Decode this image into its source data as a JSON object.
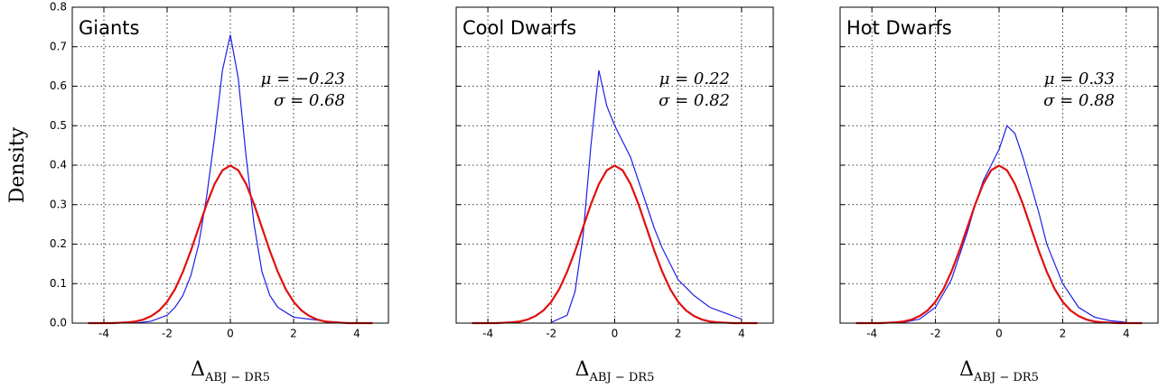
{
  "chart_data": [
    {
      "type": "line",
      "title": "Giants",
      "ylabel": "Density",
      "xlabel": {
        "main": "Δ",
        "sub": "ABJ − DR5"
      },
      "annotations": [
        "μ = −0.23",
        "σ = 0.68"
      ],
      "xlim": [
        -5,
        5
      ],
      "ylim": [
        0,
        0.8
      ],
      "xticks": [
        -4,
        -2,
        0,
        2,
        4
      ],
      "yticks": [
        {
          "value": 0,
          "label": "0.0"
        },
        0.1,
        0.2,
        0.3,
        0.4,
        0.5,
        0.6,
        0.7,
        0.8
      ],
      "ytick_labels": true,
      "grid": true,
      "series": [
        {
          "color": "#1f1fe8",
          "x": [
            -3.0,
            -2.5,
            -2.0,
            -1.75,
            -1.5,
            -1.25,
            -1.0,
            -0.75,
            -0.5,
            -0.25,
            0,
            0.25,
            0.5,
            0.75,
            1.0,
            1.25,
            1.5,
            2,
            2.5,
            3,
            3.5
          ],
          "values": [
            0.0,
            0.005,
            0.02,
            0.04,
            0.07,
            0.12,
            0.2,
            0.32,
            0.47,
            0.64,
            0.73,
            0.62,
            0.42,
            0.25,
            0.13,
            0.07,
            0.04,
            0.015,
            0.01,
            0.005,
            0.002
          ]
        },
        {
          "color": "#e01010",
          "x": [
            -4.5,
            -4.25,
            -4,
            -3.75,
            -3.5,
            -3.25,
            -3,
            -2.75,
            -2.5,
            -2.25,
            -2,
            -1.75,
            -1.5,
            -1.25,
            -1,
            -0.75,
            -0.5,
            -0.25,
            0,
            0.25,
            0.5,
            0.75,
            1,
            1.25,
            1.5,
            1.75,
            2,
            2.25,
            2.5,
            2.75,
            3,
            3.25,
            3.5,
            3.75,
            4,
            4.25,
            4.5
          ],
          "values": [
            0,
            0,
            0,
            0,
            0.001,
            0.002,
            0.004,
            0.009,
            0.018,
            0.032,
            0.054,
            0.086,
            0.13,
            0.183,
            0.242,
            0.301,
            0.352,
            0.387,
            0.399,
            0.387,
            0.352,
            0.301,
            0.242,
            0.183,
            0.13,
            0.086,
            0.054,
            0.032,
            0.018,
            0.009,
            0.004,
            0.002,
            0.001,
            0,
            0,
            0,
            0
          ]
        }
      ]
    },
    {
      "type": "line",
      "title": "Cool Dwarfs",
      "xlabel": {
        "main": "Δ",
        "sub": "ABJ − DR5"
      },
      "annotations": [
        "μ = 0.22",
        "σ = 0.82"
      ],
      "xlim": [
        -5,
        5
      ],
      "ylim": [
        0,
        0.8
      ],
      "xticks": [
        -4,
        -2,
        0,
        2,
        4
      ],
      "yticks": [
        0,
        0.1,
        0.2,
        0.3,
        0.4,
        0.5,
        0.6,
        0.7,
        0.8
      ],
      "ytick_labels": false,
      "grid": true,
      "series": [
        {
          "color": "#1f1fe8",
          "x": [
            -2,
            -1.5,
            -1.25,
            -1,
            -0.75,
            -0.5,
            -0.25,
            0,
            0.25,
            0.5,
            0.75,
            1,
            1.25,
            1.5,
            1.75,
            2,
            2.5,
            3,
            3.5,
            4
          ],
          "values": [
            0.002,
            0.02,
            0.08,
            0.22,
            0.45,
            0.64,
            0.55,
            0.5,
            0.46,
            0.42,
            0.36,
            0.3,
            0.24,
            0.19,
            0.15,
            0.11,
            0.07,
            0.04,
            0.025,
            0.01
          ]
        },
        {
          "color": "#e01010",
          "x": [
            -4.5,
            -4.25,
            -4,
            -3.75,
            -3.5,
            -3.25,
            -3,
            -2.75,
            -2.5,
            -2.25,
            -2,
            -1.75,
            -1.5,
            -1.25,
            -1,
            -0.75,
            -0.5,
            -0.25,
            0,
            0.25,
            0.5,
            0.75,
            1,
            1.25,
            1.5,
            1.75,
            2,
            2.25,
            2.5,
            2.75,
            3,
            3.25,
            3.5,
            3.75,
            4,
            4.25,
            4.5
          ],
          "values": [
            0,
            0,
            0,
            0,
            0.001,
            0.002,
            0.004,
            0.009,
            0.018,
            0.032,
            0.054,
            0.086,
            0.13,
            0.183,
            0.242,
            0.301,
            0.352,
            0.387,
            0.399,
            0.387,
            0.352,
            0.301,
            0.242,
            0.183,
            0.13,
            0.086,
            0.054,
            0.032,
            0.018,
            0.009,
            0.004,
            0.002,
            0.001,
            0,
            0,
            0,
            0
          ]
        }
      ]
    },
    {
      "type": "line",
      "title": "Hot Dwarfs",
      "xlabel": {
        "main": "Δ",
        "sub": "ABJ − DR5"
      },
      "annotations": [
        "μ = 0.33",
        "σ = 0.88"
      ],
      "xlim": [
        -5,
        5
      ],
      "ylim": [
        0,
        0.8
      ],
      "xticks": [
        -4,
        -2,
        0,
        2,
        4
      ],
      "yticks": [
        0,
        0.1,
        0.2,
        0.3,
        0.4,
        0.5,
        0.6,
        0.7,
        0.8
      ],
      "ytick_labels": false,
      "grid": true,
      "series": [
        {
          "color": "#1f1fe8",
          "x": [
            -3,
            -2.5,
            -2,
            -1.5,
            -1,
            -0.75,
            -0.5,
            -0.25,
            0,
            0.25,
            0.5,
            0.75,
            1,
            1.25,
            1.5,
            2,
            2.5,
            3,
            3.5,
            4
          ],
          "values": [
            0.002,
            0.01,
            0.04,
            0.11,
            0.23,
            0.3,
            0.36,
            0.4,
            0.44,
            0.5,
            0.48,
            0.42,
            0.35,
            0.28,
            0.2,
            0.1,
            0.04,
            0.015,
            0.006,
            0.002
          ]
        },
        {
          "color": "#e01010",
          "x": [
            -4.5,
            -4.25,
            -4,
            -3.75,
            -3.5,
            -3.25,
            -3,
            -2.75,
            -2.5,
            -2.25,
            -2,
            -1.75,
            -1.5,
            -1.25,
            -1,
            -0.75,
            -0.5,
            -0.25,
            0,
            0.25,
            0.5,
            0.75,
            1,
            1.25,
            1.5,
            1.75,
            2,
            2.25,
            2.5,
            2.75,
            3,
            3.25,
            3.5,
            3.75,
            4,
            4.25,
            4.5
          ],
          "values": [
            0,
            0,
            0,
            0,
            0.001,
            0.002,
            0.004,
            0.009,
            0.018,
            0.032,
            0.054,
            0.086,
            0.13,
            0.183,
            0.242,
            0.301,
            0.352,
            0.387,
            0.399,
            0.387,
            0.352,
            0.301,
            0.242,
            0.183,
            0.13,
            0.086,
            0.054,
            0.032,
            0.018,
            0.009,
            0.004,
            0.002,
            0.001,
            0,
            0,
            0,
            0
          ]
        }
      ]
    }
  ]
}
